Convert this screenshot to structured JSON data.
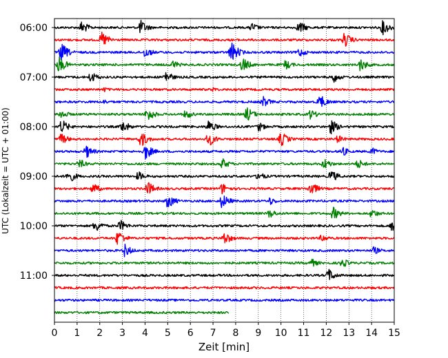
{
  "chart_data": {
    "type": "line",
    "subtype": "helicorder (seismogram traces)",
    "xlabel": "Zeit  [min]",
    "ylabel": "UTC (Lokalzeit = UTC + 01:00)",
    "x_ticks": [
      "0",
      "1",
      "2",
      "3",
      "4",
      "5",
      "6",
      "7",
      "8",
      "9",
      "10",
      "11",
      "12",
      "13",
      "14",
      "15"
    ],
    "xlim": [
      0,
      15
    ],
    "y_ticks": [
      "06:00",
      "07:00",
      "08:00",
      "09:00",
      "10:00",
      "11:00"
    ],
    "grid": "vertical dotted lines at each minute",
    "trace_interval_minutes": 15,
    "trace_colors": [
      "#000000",
      "#ff0000",
      "#0000ff",
      "#008000"
    ],
    "last_trace_end_minute": 7.7,
    "events": [
      [
        [
          1.2,
          0.8
        ],
        [
          3.8,
          0.9
        ],
        [
          8.7,
          0.6
        ],
        [
          10.8,
          0.8
        ],
        [
          14.5,
          0.9
        ]
      ],
      [
        [
          2.1,
          1.0
        ],
        [
          12.8,
          0.9
        ]
      ],
      [
        [
          0.3,
          1.1
        ],
        [
          4.0,
          0.7
        ],
        [
          7.8,
          1.3
        ],
        [
          10.8,
          0.6
        ]
      ],
      [
        [
          0.2,
          1.0
        ],
        [
          5.2,
          0.6
        ],
        [
          8.3,
          0.9
        ],
        [
          10.2,
          0.6
        ],
        [
          13.5,
          0.8
        ]
      ],
      [
        [
          1.6,
          0.7
        ],
        [
          4.9,
          0.8
        ],
        [
          12.3,
          0.7
        ]
      ],
      [
        [
          2.2,
          0.3
        ],
        [
          7.0,
          0.3
        ]
      ],
      [
        [
          2.2,
          0.3
        ],
        [
          9.2,
          0.7
        ],
        [
          11.7,
          0.9
        ]
      ],
      [
        [
          0.3,
          0.6
        ],
        [
          4.1,
          0.9
        ],
        [
          5.8,
          0.6
        ],
        [
          8.5,
          0.9
        ],
        [
          11.3,
          0.6
        ]
      ],
      [
        [
          0.3,
          0.9
        ],
        [
          3.0,
          0.8
        ],
        [
          6.8,
          0.8
        ],
        [
          9.0,
          0.6
        ],
        [
          12.2,
          0.9
        ]
      ],
      [
        [
          0.3,
          0.7
        ],
        [
          3.8,
          1.0
        ],
        [
          6.8,
          0.9
        ],
        [
          10.0,
          0.9
        ],
        [
          12.5,
          0.5
        ]
      ],
      [
        [
          1.4,
          0.8
        ],
        [
          4.0,
          1.0
        ],
        [
          12.7,
          0.6
        ],
        [
          14.0,
          0.5
        ]
      ],
      [
        [
          1.1,
          0.6
        ],
        [
          7.4,
          0.7
        ],
        [
          11.9,
          0.7
        ],
        [
          13.4,
          0.6
        ]
      ],
      [
        [
          0.6,
          0.9
        ],
        [
          3.7,
          0.6
        ],
        [
          9.0,
          0.6
        ],
        [
          12.2,
          0.8
        ]
      ],
      [
        [
          1.7,
          0.7
        ],
        [
          4.1,
          0.9
        ],
        [
          7.4,
          0.7
        ],
        [
          11.3,
          0.9
        ]
      ],
      [
        [
          5.0,
          0.9
        ],
        [
          7.4,
          0.9
        ],
        [
          9.5,
          0.5
        ]
      ],
      [
        [
          9.5,
          0.6
        ],
        [
          12.3,
          0.8
        ],
        [
          14.0,
          0.6
        ]
      ],
      [
        [
          1.8,
          0.8
        ],
        [
          2.9,
          0.7
        ],
        [
          14.9,
          0.8
        ]
      ],
      [
        [
          2.8,
          1.0
        ],
        [
          7.5,
          0.8
        ],
        [
          11.8,
          0.5
        ]
      ],
      [
        [
          3.1,
          0.8
        ],
        [
          14.1,
          0.5
        ]
      ],
      [
        [
          11.3,
          0.6
        ],
        [
          12.7,
          0.6
        ]
      ],
      [
        [
          12.1,
          0.8
        ]
      ],
      [],
      [],
      []
    ]
  }
}
